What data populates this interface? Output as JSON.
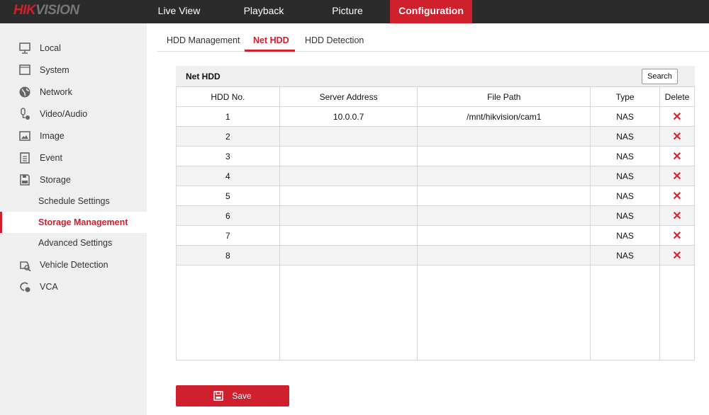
{
  "brand": {
    "logo_red": "HIK",
    "logo_gray": "VISION",
    "accent": "#d0202e"
  },
  "topnav": [
    {
      "label": "Live View"
    },
    {
      "label": "Playback"
    },
    {
      "label": "Picture"
    },
    {
      "label": "Configuration",
      "active": true
    }
  ],
  "sidebar": {
    "items": [
      {
        "label": "Local",
        "icon": "monitor-icon"
      },
      {
        "label": "System",
        "icon": "window-icon"
      },
      {
        "label": "Network",
        "icon": "globe-icon"
      },
      {
        "label": "Video/Audio",
        "icon": "microphone-icon"
      },
      {
        "label": "Image",
        "icon": "image-icon"
      },
      {
        "label": "Event",
        "icon": "calendar-icon"
      },
      {
        "label": "Storage",
        "icon": "floppy-icon"
      }
    ],
    "storage_sub": [
      {
        "label": "Schedule Settings"
      },
      {
        "label": "Storage Management",
        "active": true
      },
      {
        "label": "Advanced Settings"
      }
    ],
    "items_after": [
      {
        "label": "Vehicle Detection",
        "icon": "vehicle-icon"
      },
      {
        "label": "VCA",
        "icon": "vca-icon"
      }
    ]
  },
  "tabs": [
    {
      "label": "HDD Management"
    },
    {
      "label": "Net HDD",
      "active": true
    },
    {
      "label": "HDD Detection"
    }
  ],
  "panel": {
    "title": "Net HDD",
    "search_label": "Search",
    "columns": [
      "HDD No.",
      "Server Address",
      "File Path",
      "Type",
      "Delete"
    ],
    "rows": [
      {
        "no": "1",
        "addr": "10.0.0.7",
        "path": "/mnt/hikvision/cam1",
        "type": "NAS"
      },
      {
        "no": "2",
        "addr": "",
        "path": "",
        "type": "NAS"
      },
      {
        "no": "3",
        "addr": "",
        "path": "",
        "type": "NAS"
      },
      {
        "no": "4",
        "addr": "",
        "path": "",
        "type": "NAS"
      },
      {
        "no": "5",
        "addr": "",
        "path": "",
        "type": "NAS"
      },
      {
        "no": "6",
        "addr": "",
        "path": "",
        "type": "NAS"
      },
      {
        "no": "7",
        "addr": "",
        "path": "",
        "type": "NAS"
      },
      {
        "no": "8",
        "addr": "",
        "path": "",
        "type": "NAS"
      }
    ]
  },
  "save_label": "Save"
}
